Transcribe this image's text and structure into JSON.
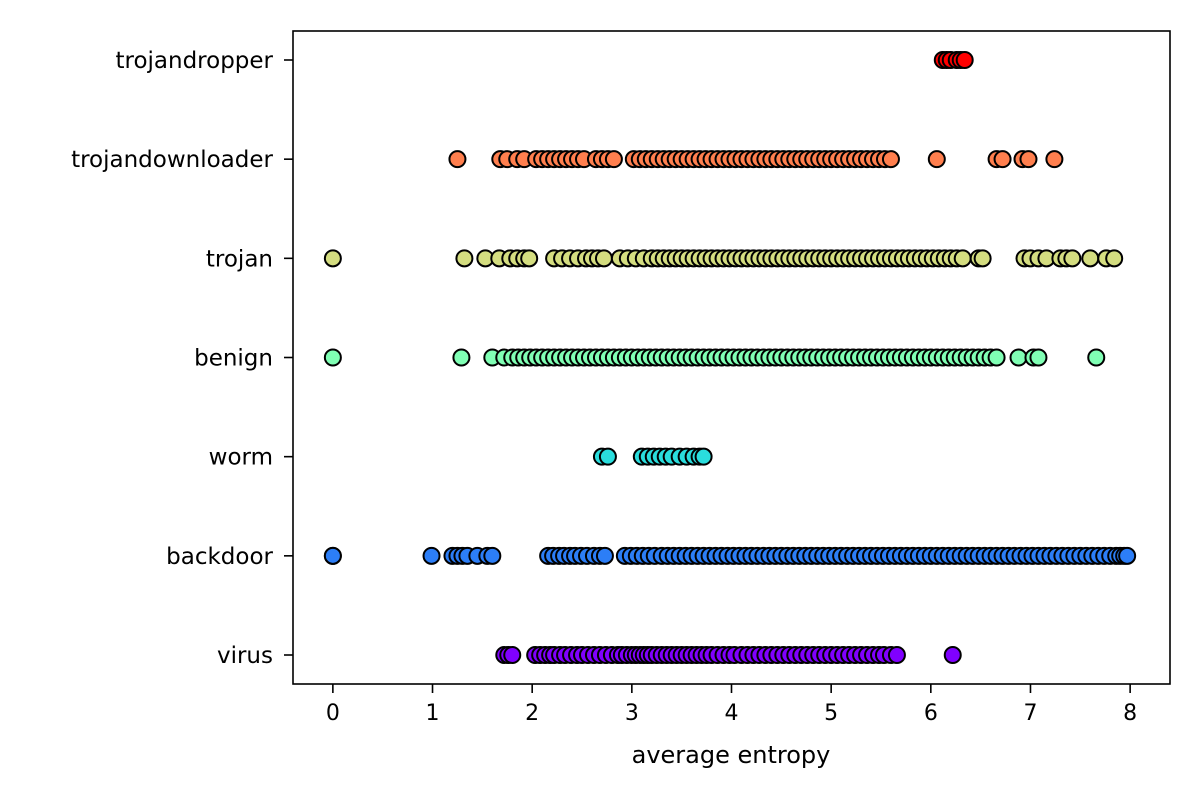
{
  "chart_data": {
    "type": "scatter",
    "title": "",
    "xlabel": "average entropy",
    "ylabel": "",
    "xlim": [
      -0.4,
      8.4
    ],
    "xticks": [
      0,
      1,
      2,
      3,
      4,
      5,
      6,
      7,
      8
    ],
    "xtick_labels": [
      "0",
      "1",
      "2",
      "3",
      "4",
      "5",
      "6",
      "7",
      "8"
    ],
    "categories": [
      "virus",
      "backdoor",
      "worm",
      "benign",
      "trojan",
      "trojandownloader",
      "trojandropper"
    ],
    "grid": false,
    "legend": "none",
    "marker_edge_color": "#000000",
    "series": [
      {
        "category": "virus",
        "color": "#8000ff",
        "x": [
          1.72,
          1.76,
          1.8,
          2.03,
          2.08,
          2.13,
          2.18,
          2.22,
          2.28,
          2.33,
          2.39,
          2.45,
          2.5,
          2.56,
          2.62,
          2.68,
          2.74,
          2.8,
          2.86,
          2.9,
          2.95,
          3.0,
          3.04,
          3.08,
          3.12,
          3.16,
          3.2,
          3.25,
          3.3,
          3.35,
          3.4,
          3.45,
          3.5,
          3.55,
          3.6,
          3.65,
          3.7,
          3.75,
          3.8,
          3.86,
          3.92,
          3.98,
          4.03,
          4.1,
          4.16,
          4.22,
          4.28,
          4.34,
          4.4,
          4.46,
          4.52,
          4.58,
          4.64,
          4.7,
          4.76,
          4.82,
          4.88,
          4.94,
          5.0,
          5.06,
          5.12,
          5.18,
          5.24,
          5.3,
          5.36,
          5.42,
          5.48,
          5.53,
          5.6,
          5.66,
          6.22
        ]
      },
      {
        "category": "backdoor",
        "color": "#2c7ef7",
        "x": [
          0.0,
          0.0,
          0.99,
          1.2,
          1.25,
          1.3,
          1.35,
          1.45,
          1.55,
          1.6,
          2.16,
          2.21,
          2.27,
          2.32,
          2.38,
          2.43,
          2.49,
          2.55,
          2.62,
          2.68,
          2.73,
          2.93,
          2.99,
          3.05,
          3.11,
          3.17,
          3.23,
          3.3,
          3.36,
          3.42,
          3.48,
          3.54,
          3.6,
          3.66,
          3.72,
          3.78,
          3.84,
          3.9,
          3.96,
          4.02,
          4.08,
          4.14,
          4.2,
          4.26,
          4.32,
          4.38,
          4.44,
          4.5,
          4.56,
          4.62,
          4.68,
          4.74,
          4.8,
          4.86,
          4.92,
          4.98,
          5.04,
          5.1,
          5.16,
          5.22,
          5.28,
          5.34,
          5.4,
          5.46,
          5.52,
          5.58,
          5.64,
          5.7,
          5.76,
          5.82,
          5.88,
          5.94,
          6.0,
          6.06,
          6.12,
          6.18,
          6.24,
          6.3,
          6.36,
          6.42,
          6.48,
          6.54,
          6.6,
          6.66,
          6.72,
          6.78,
          6.84,
          6.9,
          6.96,
          7.02,
          7.08,
          7.14,
          7.2,
          7.26,
          7.32,
          7.38,
          7.44,
          7.5,
          7.56,
          7.62,
          7.68,
          7.74,
          7.8,
          7.86,
          7.9,
          7.94,
          7.97
        ]
      },
      {
        "category": "worm",
        "color": "#2adddd",
        "x": [
          2.7,
          2.76,
          3.1,
          3.16,
          3.22,
          3.28,
          3.34,
          3.4,
          3.48,
          3.55,
          3.62,
          3.68,
          3.72
        ]
      },
      {
        "category": "benign",
        "color": "#80ffb4",
        "x": [
          0.0,
          1.29,
          1.6,
          1.72,
          1.8,
          1.86,
          1.92,
          1.98,
          2.04,
          2.1,
          2.16,
          2.22,
          2.28,
          2.34,
          2.4,
          2.46,
          2.52,
          2.58,
          2.64,
          2.7,
          2.76,
          2.82,
          2.88,
          2.94,
          3.0,
          3.06,
          3.12,
          3.18,
          3.24,
          3.3,
          3.36,
          3.42,
          3.48,
          3.54,
          3.6,
          3.66,
          3.72,
          3.78,
          3.84,
          3.9,
          3.96,
          4.02,
          4.08,
          4.14,
          4.2,
          4.26,
          4.32,
          4.38,
          4.44,
          4.5,
          4.56,
          4.62,
          4.68,
          4.74,
          4.8,
          4.86,
          4.92,
          4.98,
          5.04,
          5.1,
          5.16,
          5.22,
          5.28,
          5.34,
          5.4,
          5.46,
          5.52,
          5.58,
          5.64,
          5.7,
          5.76,
          5.82,
          5.88,
          5.94,
          6.0,
          6.06,
          6.12,
          6.18,
          6.24,
          6.3,
          6.36,
          6.42,
          6.48,
          6.54,
          6.6,
          6.66,
          6.88,
          7.03,
          7.08,
          7.66
        ]
      },
      {
        "category": "trojan",
        "color": "#d4dd80",
        "x": [
          0.0,
          1.32,
          1.53,
          1.67,
          1.78,
          1.85,
          1.92,
          1.97,
          2.22,
          2.3,
          2.38,
          2.46,
          2.54,
          2.6,
          2.66,
          2.72,
          2.88,
          2.96,
          3.04,
          3.12,
          3.2,
          3.26,
          3.32,
          3.38,
          3.44,
          3.5,
          3.56,
          3.62,
          3.68,
          3.74,
          3.8,
          3.86,
          3.92,
          3.98,
          4.04,
          4.1,
          4.16,
          4.22,
          4.28,
          4.34,
          4.4,
          4.46,
          4.52,
          4.58,
          4.64,
          4.7,
          4.76,
          4.82,
          4.88,
          4.94,
          5.0,
          5.06,
          5.12,
          5.18,
          5.24,
          5.3,
          5.36,
          5.42,
          5.48,
          5.54,
          5.6,
          5.66,
          5.72,
          5.78,
          5.84,
          5.9,
          5.96,
          6.02,
          6.08,
          6.14,
          6.2,
          6.26,
          6.32,
          6.48,
          6.52,
          6.94,
          7.0,
          7.08,
          7.16,
          7.3,
          7.36,
          7.42,
          7.6,
          7.76,
          7.84
        ]
      },
      {
        "category": "trojandownloader",
        "color": "#ff7f4e",
        "x": [
          1.25,
          1.68,
          1.75,
          1.85,
          1.92,
          2.04,
          2.1,
          2.16,
          2.22,
          2.28,
          2.34,
          2.4,
          2.46,
          2.52,
          2.64,
          2.7,
          2.76,
          2.82,
          3.02,
          3.08,
          3.14,
          3.2,
          3.26,
          3.32,
          3.38,
          3.44,
          3.5,
          3.56,
          3.62,
          3.68,
          3.74,
          3.8,
          3.86,
          3.92,
          3.98,
          4.04,
          4.1,
          4.16,
          4.22,
          4.28,
          4.34,
          4.4,
          4.46,
          4.52,
          4.58,
          4.64,
          4.7,
          4.76,
          4.82,
          4.88,
          4.94,
          5.0,
          5.06,
          5.12,
          5.18,
          5.24,
          5.3,
          5.36,
          5.42,
          5.48,
          5.54,
          5.6,
          6.06,
          6.66,
          6.72,
          6.92,
          6.98,
          7.24
        ]
      },
      {
        "category": "trojandropper",
        "color": "#ff0000",
        "x": [
          6.12,
          6.16,
          6.2,
          6.26,
          6.3,
          6.34
        ]
      }
    ]
  }
}
